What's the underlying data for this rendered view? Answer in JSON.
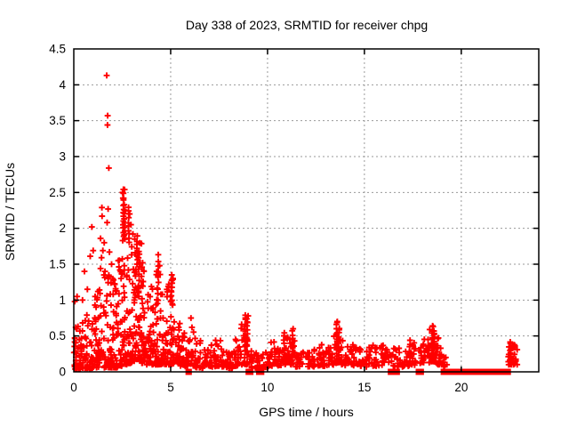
{
  "header": {
    "title": "Day 338 of 2023, SRMTID for receiver chpg"
  },
  "chart_data": {
    "type": "scatter",
    "title": "Day 338 of 2023, SRMTID for receiver chpg",
    "xlabel": "GPS time / hours",
    "ylabel": "SRMTID / TECUs",
    "xlim": [
      0,
      24
    ],
    "ylim": [
      0,
      4.5
    ],
    "xticks": [
      0,
      5,
      10,
      15,
      20
    ],
    "x_tick_labels": [
      "0",
      "5",
      "10",
      "15",
      "20"
    ],
    "yticks": [
      0,
      0.5,
      1,
      1.5,
      2,
      2.5,
      3,
      3.5,
      4,
      4.5
    ],
    "y_tick_labels": [
      "0",
      "0.5",
      "1",
      "1.5",
      "2",
      "2.5",
      "3",
      "3.5",
      "4",
      "4.5"
    ],
    "grid": true,
    "legend": "none",
    "marker": "plus",
    "marker_color": "#ff0000",
    "grid_color": "#9a9a9a",
    "frame_color": "#000000",
    "background": "#ffffff",
    "description": "Dense 30-second SRMTID scatter: strong activity 0-5.5h with outliers to 4.13 TECU near 1.7h, decaying baseline ~0.1-0.3 after 6h with spikes near 9, 11.3, 13.6 and 18.5h, flagged zero values 19-22.4h, final blob 22.4-23h",
    "outlier_points": [
      [
        1.7,
        4.13
      ],
      [
        1.75,
        3.57
      ],
      [
        1.74,
        3.44
      ],
      [
        1.81,
        2.84
      ],
      [
        2.52,
        2.5
      ],
      [
        2.57,
        2.42
      ],
      [
        2.62,
        2.54
      ],
      [
        1.45,
        2.29
      ],
      [
        1.77,
        2.27
      ],
      [
        1.46,
        2.17
      ],
      [
        1.72,
        2.08
      ],
      [
        0.93,
        2.02
      ],
      [
        2.88,
        2.2
      ],
      [
        2.95,
        2.05
      ],
      [
        3.05,
        1.92
      ],
      [
        3.15,
        1.85
      ],
      [
        1.38,
        1.86
      ],
      [
        1.57,
        1.8
      ],
      [
        1.0,
        1.69
      ],
      [
        1.5,
        1.69
      ],
      [
        1.84,
        1.67
      ],
      [
        0.85,
        1.61
      ],
      [
        1.43,
        1.59
      ],
      [
        1.95,
        1.5
      ],
      [
        3.55,
        1.52
      ],
      [
        3.62,
        1.4
      ],
      [
        1.38,
        1.44
      ],
      [
        0.55,
        1.4
      ],
      [
        1.61,
        1.4
      ],
      [
        4.28,
        1.4
      ],
      [
        1.77,
        1.3
      ],
      [
        1.92,
        1.24
      ],
      [
        2.15,
        1.13
      ],
      [
        0.17,
        1.05
      ],
      [
        1.1,
        1.05
      ],
      [
        1.25,
        1.12
      ],
      [
        0.45,
        1.0
      ],
      [
        0.7,
        1.15
      ],
      [
        2.3,
        1.55
      ],
      [
        2.38,
        1.42
      ],
      [
        2.44,
        1.3
      ],
      [
        2.05,
        1.28
      ],
      [
        4.9,
        1.22
      ],
      [
        5.12,
        1.3
      ],
      [
        0.05,
        0.98
      ],
      [
        0.1,
        0.62
      ],
      [
        6.05,
        0.75
      ],
      [
        6.1,
        0.62
      ],
      [
        9.0,
        0.78
      ],
      [
        13.6,
        0.7
      ],
      [
        18.55,
        0.63
      ],
      [
        11.32,
        0.6
      ]
    ],
    "dense_bands": [
      [
        0.0,
        0.25,
        26,
        0.04,
        0.68,
        1.8
      ],
      [
        0.25,
        0.5,
        26,
        0.04,
        0.8,
        2.0
      ],
      [
        0.5,
        0.75,
        24,
        0.05,
        1.0,
        2.2
      ],
      [
        0.75,
        1.0,
        24,
        0.05,
        0.95,
        2.2
      ],
      [
        1.0,
        1.25,
        22,
        0.06,
        1.05,
        2.2
      ],
      [
        1.25,
        1.5,
        22,
        0.06,
        1.15,
        2.2
      ],
      [
        1.5,
        1.75,
        24,
        0.06,
        1.35,
        2.4
      ],
      [
        1.75,
        2.0,
        26,
        0.06,
        1.55,
        2.4
      ],
      [
        2.0,
        2.25,
        30,
        0.06,
        1.35,
        2.4
      ],
      [
        2.25,
        2.5,
        30,
        0.08,
        1.65,
        2.4
      ],
      [
        2.5,
        2.75,
        32,
        0.1,
        1.95,
        2.2
      ],
      [
        2.75,
        3.0,
        32,
        0.12,
        1.9,
        2.2
      ],
      [
        3.0,
        3.25,
        32,
        0.15,
        1.85,
        2.0
      ],
      [
        3.25,
        3.5,
        32,
        0.15,
        1.8,
        2.0
      ],
      [
        3.5,
        3.75,
        28,
        0.12,
        1.5,
        2.2
      ],
      [
        3.75,
        4.0,
        26,
        0.1,
        1.2,
        2.0
      ],
      [
        4.0,
        4.25,
        26,
        0.1,
        1.25,
        2.0
      ],
      [
        4.25,
        4.5,
        26,
        0.1,
        1.5,
        2.2
      ],
      [
        4.5,
        4.75,
        24,
        0.1,
        1.1,
        2.0
      ],
      [
        4.75,
        5.0,
        24,
        0.1,
        1.2,
        2.0
      ],
      [
        5.0,
        5.25,
        24,
        0.1,
        1.3,
        2.2
      ],
      [
        5.25,
        5.5,
        20,
        0.1,
        0.7,
        1.8
      ],
      [
        5.5,
        5.75,
        18,
        0.08,
        0.55,
        1.8
      ],
      [
        5.75,
        6.0,
        16,
        0.05,
        0.45,
        1.8
      ],
      [
        6.0,
        6.3,
        18,
        0.08,
        0.62,
        1.8
      ],
      [
        6.3,
        6.6,
        16,
        0.06,
        0.45,
        1.8
      ],
      [
        6.6,
        7.0,
        18,
        0.05,
        0.32,
        1.5
      ],
      [
        7.0,
        7.3,
        16,
        0.07,
        0.38,
        1.6
      ],
      [
        7.3,
        7.6,
        18,
        0.08,
        0.5,
        1.8
      ],
      [
        7.6,
        8.0,
        18,
        0.05,
        0.33,
        1.5
      ],
      [
        8.0,
        8.3,
        16,
        0.05,
        0.32,
        1.5
      ],
      [
        8.3,
        8.6,
        18,
        0.08,
        0.5,
        1.8
      ],
      [
        8.6,
        9.1,
        24,
        0.1,
        0.72,
        1.6
      ],
      [
        9.1,
        9.5,
        16,
        0.05,
        0.3,
        1.5
      ],
      [
        9.5,
        9.8,
        12,
        0.04,
        0.26,
        1.5
      ],
      [
        9.8,
        10.1,
        14,
        0.06,
        0.3,
        1.5
      ],
      [
        10.1,
        10.5,
        18,
        0.08,
        0.42,
        1.6
      ],
      [
        10.5,
        10.8,
        14,
        0.08,
        0.36,
        1.6
      ],
      [
        10.8,
        11.1,
        16,
        0.1,
        0.5,
        1.8
      ],
      [
        11.1,
        11.45,
        16,
        0.1,
        0.55,
        1.8
      ],
      [
        11.45,
        12.0,
        22,
        0.07,
        0.33,
        1.5
      ],
      [
        12.0,
        12.5,
        22,
        0.07,
        0.33,
        1.5
      ],
      [
        12.5,
        13.0,
        22,
        0.08,
        0.38,
        1.5
      ],
      [
        13.0,
        13.4,
        18,
        0.09,
        0.42,
        1.6
      ],
      [
        13.4,
        13.8,
        20,
        0.12,
        0.62,
        1.7
      ],
      [
        13.8,
        14.2,
        18,
        0.09,
        0.48,
        1.6
      ],
      [
        14.2,
        14.7,
        20,
        0.08,
        0.38,
        1.5
      ],
      [
        14.7,
        15.2,
        20,
        0.07,
        0.33,
        1.5
      ],
      [
        15.2,
        15.7,
        20,
        0.08,
        0.4,
        1.5
      ],
      [
        15.7,
        16.3,
        24,
        0.08,
        0.38,
        1.5
      ],
      [
        16.3,
        16.7,
        12,
        0.08,
        0.33,
        1.5
      ],
      [
        16.7,
        17.2,
        18,
        0.07,
        0.34,
        1.5
      ],
      [
        17.2,
        17.6,
        16,
        0.08,
        0.42,
        1.6
      ],
      [
        17.6,
        18.0,
        12,
        0.12,
        0.4,
        1.6
      ],
      [
        18.0,
        18.35,
        20,
        0.13,
        0.52,
        1.6
      ],
      [
        18.35,
        18.7,
        24,
        0.14,
        0.6,
        1.6
      ],
      [
        18.7,
        19.0,
        18,
        0.1,
        0.48,
        1.6
      ],
      [
        19.0,
        19.3,
        7,
        0.07,
        0.3,
        1.5
      ],
      [
        22.4,
        23.0,
        26,
        0.1,
        0.42,
        1.4
      ]
    ],
    "spike_columns": [
      [
        2.56,
        1.9,
        2.54,
        13
      ],
      [
        2.62,
        1.85,
        2.32,
        9
      ],
      [
        2.84,
        1.8,
        2.3,
        10
      ],
      [
        3.27,
        1.5,
        1.88,
        8
      ],
      [
        3.36,
        1.05,
        1.68,
        9
      ],
      [
        4.35,
        1.0,
        1.62,
        9
      ],
      [
        5.06,
        0.95,
        1.35,
        8
      ],
      [
        8.84,
        0.3,
        0.8,
        13
      ],
      [
        8.94,
        0.25,
        0.73,
        11
      ],
      [
        10.86,
        0.18,
        0.55,
        8
      ],
      [
        11.3,
        0.18,
        0.57,
        9
      ],
      [
        13.58,
        0.22,
        0.7,
        11
      ],
      [
        13.68,
        0.18,
        0.6,
        9
      ],
      [
        17.34,
        0.14,
        0.44,
        7
      ],
      [
        18.5,
        0.2,
        0.63,
        10
      ],
      [
        18.58,
        0.22,
        0.58,
        8
      ],
      [
        22.55,
        0.14,
        0.43,
        8
      ]
    ],
    "zero_value_runs": [
      [
        5.88,
        5.98
      ],
      [
        8.98,
        9.05
      ],
      [
        9.1,
        9.16
      ],
      [
        9.52,
        9.72
      ],
      [
        16.32,
        16.52
      ],
      [
        16.58,
        16.72
      ],
      [
        17.76,
        17.96
      ],
      [
        19.05,
        19.35
      ],
      [
        19.42,
        19.92
      ],
      [
        19.98,
        20.52
      ],
      [
        20.65,
        21.2
      ],
      [
        21.3,
        21.78
      ],
      [
        21.85,
        22.45
      ]
    ]
  }
}
